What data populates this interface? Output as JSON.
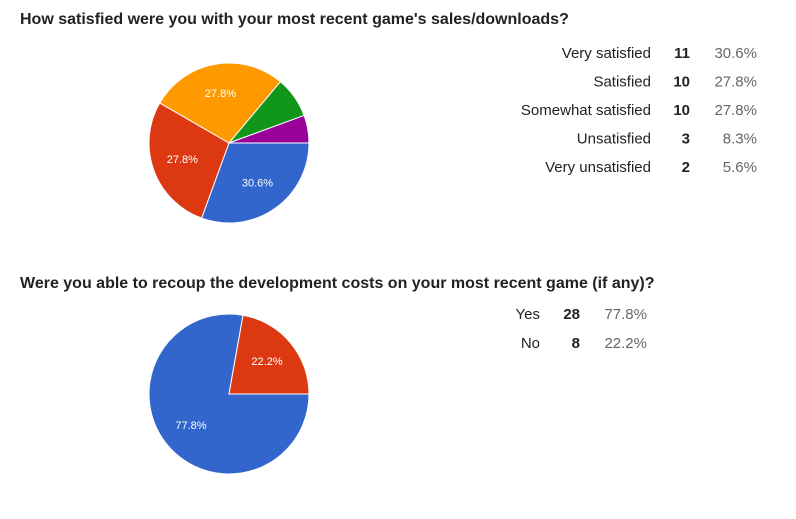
{
  "chart_data": [
    {
      "type": "pie",
      "title": "How satisfied were you with your most recent game's sales/downloads?",
      "categories": [
        "Very satisfied",
        "Satisfied",
        "Somewhat satisfied",
        "Unsatisfied",
        "Very unsatisfied"
      ],
      "counts": [
        11,
        10,
        10,
        3,
        2
      ],
      "values": [
        30.6,
        27.8,
        27.8,
        8.3,
        5.6
      ],
      "value_labels": [
        "30.6%",
        "27.8%",
        "27.8%",
        "8.3%",
        "5.6%"
      ],
      "colors": [
        "#3366cc",
        "#dc3912",
        "#ff9900",
        "#109618",
        "#990099"
      ]
    },
    {
      "type": "pie",
      "title": "Were you able to recoup the development costs on your most recent game (if any)?",
      "categories": [
        "Yes",
        "No"
      ],
      "counts": [
        28,
        8
      ],
      "values": [
        77.8,
        22.2
      ],
      "value_labels": [
        "77.8%",
        "22.2%"
      ],
      "colors": [
        "#3366cc",
        "#dc3912"
      ]
    }
  ]
}
